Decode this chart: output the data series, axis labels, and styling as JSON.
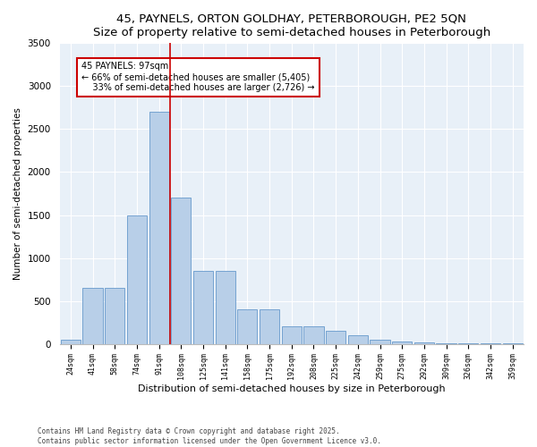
{
  "title1": "45, PAYNELS, ORTON GOLDHAY, PETERBOROUGH, PE2 5QN",
  "title2": "Size of property relative to semi-detached houses in Peterborough",
  "xlabel": "Distribution of semi-detached houses by size in Peterborough",
  "ylabel": "Number of semi-detached properties",
  "categories": [
    "24sqm",
    "41sqm",
    "58sqm",
    "74sqm",
    "91sqm",
    "108sqm",
    "125sqm",
    "141sqm",
    "158sqm",
    "175sqm",
    "192sqm",
    "208sqm",
    "225sqm",
    "242sqm",
    "259sqm",
    "275sqm",
    "292sqm",
    "309sqm",
    "326sqm",
    "342sqm",
    "359sqm"
  ],
  "values": [
    50,
    650,
    650,
    1500,
    2700,
    1700,
    850,
    850,
    400,
    400,
    200,
    200,
    150,
    100,
    50,
    30,
    20,
    10,
    5,
    5,
    5
  ],
  "bar_color": "#b8cfe8",
  "bar_edge_color": "#6699cc",
  "vline_x": 4.5,
  "vline_color": "#cc0000",
  "property_label": "45 PAYNELS: 97sqm",
  "pct_smaller": "66% of semi-detached houses are smaller (5,405)",
  "pct_larger": "33% of semi-detached houses are larger (2,726)",
  "annotation_box_color": "#cc0000",
  "ylim": [
    0,
    3500
  ],
  "yticks": [
    0,
    500,
    1000,
    1500,
    2000,
    2500,
    3000,
    3500
  ],
  "bg_color": "#e8f0f8",
  "footer1": "Contains HM Land Registry data © Crown copyright and database right 2025.",
  "footer2": "Contains public sector information licensed under the Open Government Licence v3.0.",
  "title_fontsize": 9.5,
  "subtitle_fontsize": 8.5
}
